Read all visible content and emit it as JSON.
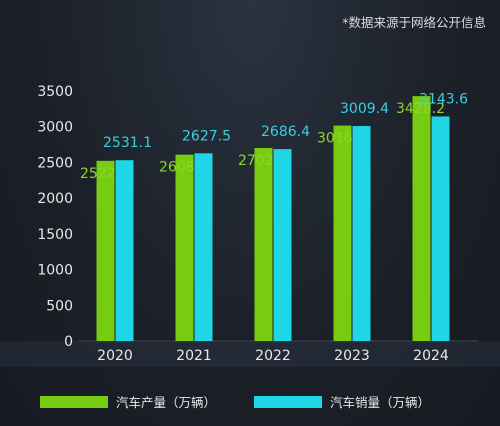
{
  "note": "*数据来源于网络公开信息",
  "colors": {
    "production": "#77cc10",
    "sales": "#1fd6e6",
    "axis_text": "#e6e8eb"
  },
  "chart_data": {
    "type": "bar",
    "categories": [
      "2020",
      "2021",
      "2022",
      "2023",
      "2024"
    ],
    "series": [
      {
        "name": "汽车产量（万辆）",
        "values": [
          2522.5,
          2608.2,
          2702.1,
          3016.1,
          3428.2
        ],
        "label_color": "#8fd42a"
      },
      {
        "name": "汽车销量（万辆）",
        "values": [
          2531.1,
          2627.5,
          2686.4,
          3009.4,
          3143.6
        ],
        "label_color": "#38cfe0"
      }
    ],
    "yticks": [
      "0",
      "500",
      "1000",
      "1500",
      "2000",
      "2500",
      "3000",
      "3500"
    ],
    "ylim": [
      0,
      3500
    ],
    "grid": false,
    "legend_position": "bottom"
  }
}
